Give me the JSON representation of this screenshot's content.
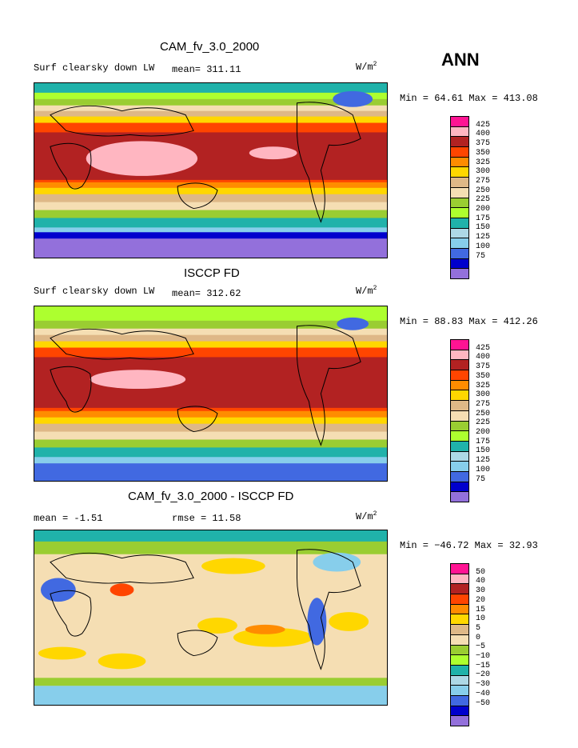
{
  "season": "ANN",
  "colors": {
    "abs": [
      "#ff1493",
      "#ffb6c1",
      "#b22222",
      "#ff4500",
      "#ff8c00",
      "#ffd700",
      "#deb887",
      "#f5deb3",
      "#9acd32",
      "#adff2f",
      "#20b2aa",
      "#add8e6",
      "#87ceeb",
      "#4169e1",
      "#0000cd",
      "#9370db"
    ],
    "diff": [
      "#ff1493",
      "#ffb6c1",
      "#b22222",
      "#ff4500",
      "#ff8c00",
      "#ffd700",
      "#deb887",
      "#f5deb3",
      "#9acd32",
      "#adff2f",
      "#20b2aa",
      "#add8e6",
      "#87ceeb",
      "#4169e1",
      "#0000cd",
      "#9370db"
    ]
  },
  "panels": [
    {
      "title": "CAM_fv_3.0_2000",
      "left_label": "Surf clearsky down LW",
      "mean_label": "mean= 311.11",
      "units_base": "W/m",
      "units_sup": "2",
      "minmax": "Min =  64.61 Max = 413.08",
      "ticks": [
        "425",
        "400",
        "375",
        "350",
        "325",
        "300",
        "275",
        "250",
        "225",
        "200",
        "175",
        "150",
        "125",
        "100",
        "75"
      ]
    },
    {
      "title": "ISCCP FD",
      "left_label": "Surf clearsky down LW",
      "mean_label": "mean= 312.62",
      "units_base": "W/m",
      "units_sup": "2",
      "minmax": "Min =  88.83 Max = 412.26",
      "ticks": [
        "425",
        "400",
        "375",
        "350",
        "325",
        "300",
        "275",
        "250",
        "225",
        "200",
        "175",
        "150",
        "125",
        "100",
        "75"
      ]
    },
    {
      "title": "CAM_fv_3.0_2000 - ISCCP FD",
      "left_label": "mean =   -1.51",
      "mean_label": "rmse =   11.58",
      "units_base": "W/m",
      "units_sup": "2",
      "minmax": "Min = −46.72 Max =  32.93",
      "ticks": [
        "50",
        "40",
        "30",
        "20",
        "15",
        "10",
        "5",
        "0",
        "−5",
        "−10",
        "−15",
        "−20",
        "−30",
        "−40",
        "−50"
      ]
    }
  ]
}
